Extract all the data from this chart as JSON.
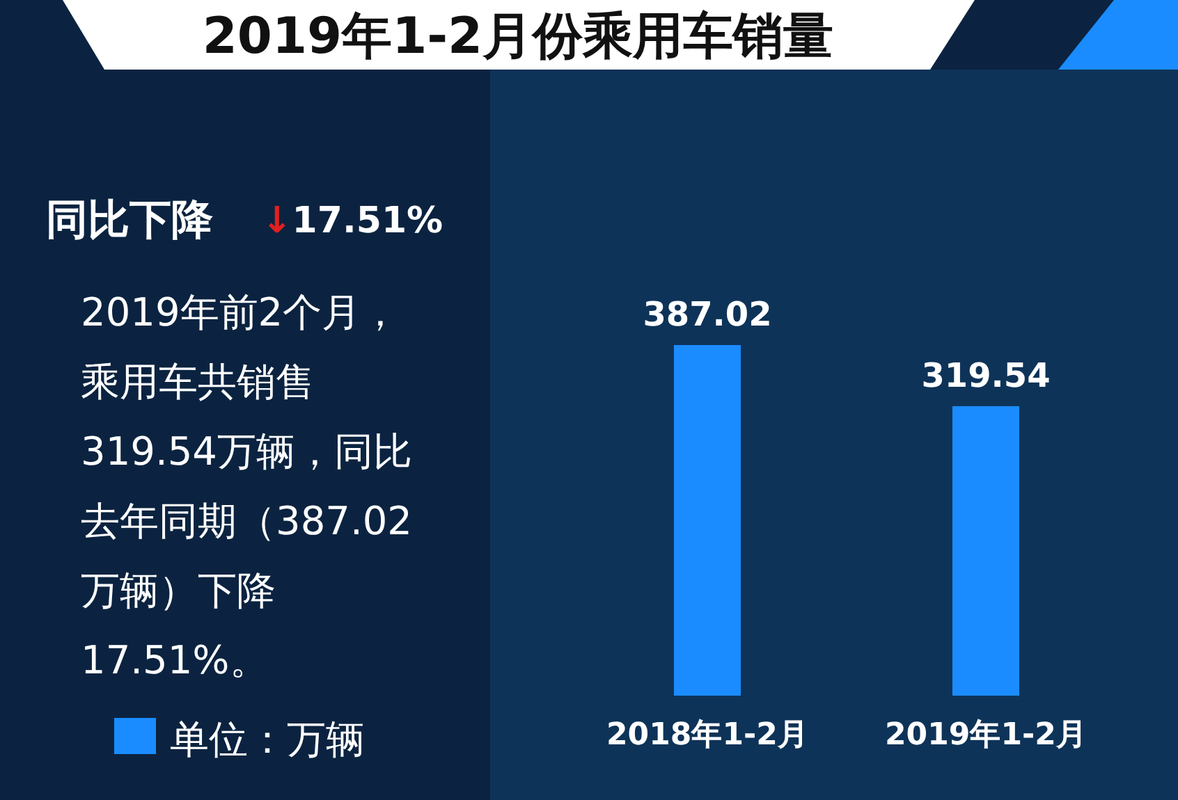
{
  "chart_data": {
    "type": "bar",
    "title": "2019年1-2月份乘用车销量",
    "categories": [
      "2018年1-2月",
      "2019年1-2月"
    ],
    "series": [
      {
        "name": "单位：万辆",
        "color": "#1a8cff",
        "values": [
          387.02,
          319.54
        ]
      }
    ],
    "data_labels": true,
    "legend": "bottom left",
    "annotations": [
      "同比下降",
      "↓17.51%",
      "2019年前2个月，乘用车共销售319.54万辆，同比去年同期（387.02万辆）下降17.51%。"
    ]
  }
}
